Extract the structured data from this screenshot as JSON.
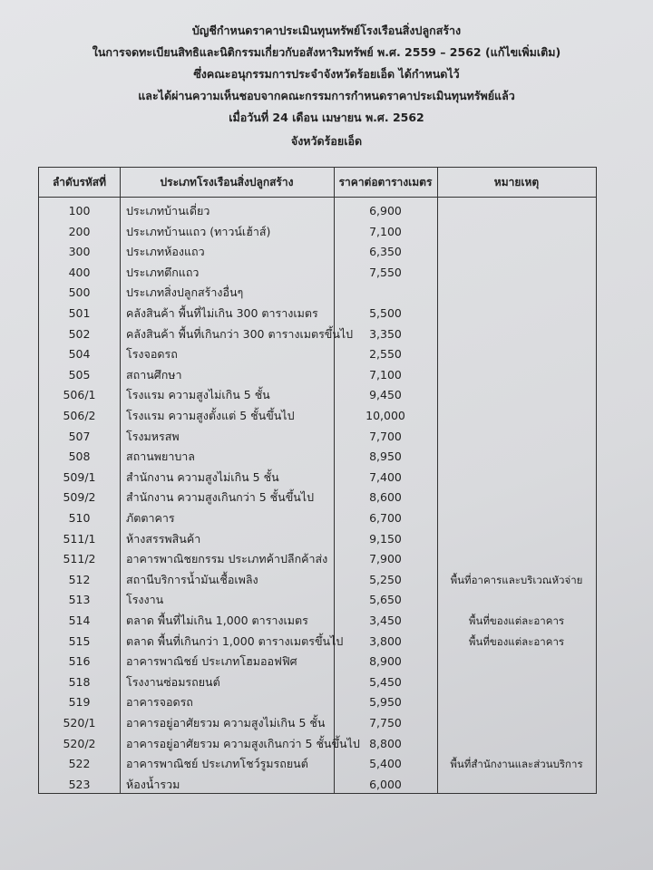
{
  "header": {
    "lines": [
      "บัญชีกำหนดราคาประเมินทุนทรัพย์โรงเรือนสิ่งปลูกสร้าง",
      "ในการจดทะเบียนสิทธิและนิติกรรมเกี่ยวกับอสังหาริมทรัพย์ พ.ศ. 2559 – 2562 (แก้ไขเพิ่มเติม)",
      "ซึ่งคณะอนุกรรมการประจำจังหวัดร้อยเอ็ด ได้กำหนดไว้",
      "และได้ผ่านความเห็นชอบจากคณะกรรมการกำหนดราคาประเมินทุนทรัพย์แล้ว",
      "เมื่อวันที่  24  เดือน เมษายน พ.ศ. 2562",
      "จังหวัดร้อยเอ็ด"
    ]
  },
  "table": {
    "columns": [
      "ลำดับรหัสที่",
      "ประเภทโรงเรือนสิ่งปลูกสร้าง",
      "ราคาต่อตารางเมตร",
      "หมายเหตุ"
    ],
    "rows": [
      {
        "code": "100",
        "type": "ประเภทบ้านเดี่ยว",
        "price": "6,900"
      },
      {
        "code": "200",
        "type": "ประเภทบ้านแถว (ทาวน์เฮ้าส์)",
        "price": "7,100"
      },
      {
        "code": "300",
        "type": "ประเภทห้องแถว",
        "price": "6,350"
      },
      {
        "code": "400",
        "type": "ประเภทตึกแถว",
        "price": "7,550"
      },
      {
        "code": "500",
        "type": "ประเภทสิ่งปลูกสร้างอื่นๆ"
      },
      {
        "code": "501",
        "type": "คลังสินค้า พื้นที่ไม่เกิน 300 ตารางเมตร",
        "price": "5,500"
      },
      {
        "code": "502",
        "type": "คลังสินค้า พื้นที่เกินกว่า 300 ตารางเมตรขึ้นไป",
        "price": "3,350"
      },
      {
        "code": "504",
        "type": "โรงจอดรถ",
        "price": "2,550"
      },
      {
        "code": "505",
        "type": "สถานศึกษา",
        "price": "7,100"
      },
      {
        "code": "506/1",
        "type": "โรงแรม ความสูงไม่เกิน 5 ชั้น",
        "price": "9,450"
      },
      {
        "code": "506/2",
        "type": "โรงแรม ความสูงตั้งแต่ 5 ชั้นขึ้นไป",
        "price": "10,000"
      },
      {
        "code": "507",
        "type": "โรงมหรสพ",
        "price": "7,700"
      },
      {
        "code": "508",
        "type": "สถานพยาบาล",
        "price": "8,950"
      },
      {
        "code": "509/1",
        "type": "สำนักงาน ความสูงไม่เกิน 5 ชั้น",
        "price": "7,400"
      },
      {
        "code": "509/2",
        "type": "สำนักงาน ความสูงเกินกว่า 5 ชั้นขึ้นไป",
        "price": "8,600"
      },
      {
        "code": "510",
        "type": "ภัตตาคาร",
        "price": "6,700"
      },
      {
        "code": "511/1",
        "type": "ห้างสรรพสินค้า",
        "price": "9,150"
      },
      {
        "code": "511/2",
        "type": "อาคารพาณิชยกรรม ประเภทค้าปลีกค้าส่ง",
        "price": "7,900"
      },
      {
        "code": "512",
        "type": "สถานีบริการน้ำมันเชื้อเพลิง",
        "price": "5,250",
        "note": "พื้นที่อาคารและบริเวณหัวจ่าย"
      },
      {
        "code": "513",
        "type": "โรงงาน",
        "price": "5,650"
      },
      {
        "code": "514",
        "type": "ตลาด พื้นที่ไม่เกิน 1,000 ตารางเมตร",
        "price": "3,450",
        "note": "พื้นที่ของแต่ละอาคาร"
      },
      {
        "code": "515",
        "type": "ตลาด พื้นที่เกินกว่า 1,000 ตารางเมตรขึ้นไป",
        "price": "3,800",
        "note": "พื้นที่ของแต่ละอาคาร"
      },
      {
        "code": "516",
        "type": "อาคารพาณิชย์ ประเภทโฮมออฟฟิศ",
        "price": "8,900"
      },
      {
        "code": "518",
        "type": "โรงงานซ่อมรถยนต์",
        "price": "5,450"
      },
      {
        "code": "519",
        "type": "อาคารจอดรถ",
        "price": "5,950"
      },
      {
        "code": "520/1",
        "type": "อาคารอยู่อาศัยรวม ความสูงไม่เกิน 5 ชั้น",
        "price": "7,750"
      },
      {
        "code": "520/2",
        "type": "อาคารอยู่อาศัยรวม ความสูงเกินกว่า 5 ชั้นขึ้นไป",
        "price": "8,800"
      },
      {
        "code": "522",
        "type": "อาคารพาณิชย์ ประเภทโชว์รูมรถยนต์",
        "price": "5,400",
        "note": "พื้นที่สำนักงานและส่วนบริการ"
      },
      {
        "code": "523",
        "type": "ห้องน้ำรวม",
        "price": "6,000"
      }
    ]
  }
}
